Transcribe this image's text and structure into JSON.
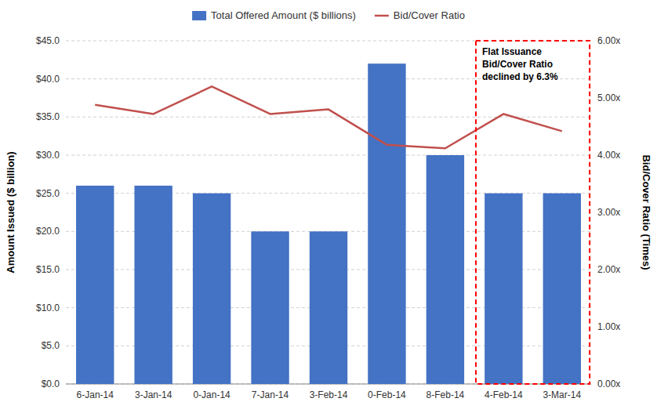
{
  "chart_data": {
    "type": "bar",
    "categories": [
      "6-Jan-14",
      "3-Jan-14",
      "0-Jan-14",
      "7-Jan-14",
      "3-Feb-14",
      "0-Feb-14",
      "8-Feb-14",
      "4-Feb-14",
      "3-Mar-14"
    ],
    "series": [
      {
        "name": "Total Offered Amount ($ billions)",
        "type": "bar",
        "color": "#4472C4",
        "values": [
          26,
          26,
          25,
          20,
          20,
          42,
          30,
          25,
          25
        ]
      },
      {
        "name": "Bid/Cover Ratio",
        "type": "line",
        "axis": "y2",
        "color": "#C0504D",
        "values": [
          4.88,
          4.72,
          5.2,
          4.72,
          4.8,
          4.18,
          4.12,
          4.72,
          4.42
        ]
      }
    ],
    "y_label": "Amount Issued ($ billion)",
    "y2_label": "Bid/Cover Ratio (Times)",
    "ylim": [
      0,
      45
    ],
    "yticks": [
      {
        "value": 0,
        "label": "$0.0"
      },
      {
        "value": 5,
        "label": "$5.0"
      },
      {
        "value": 10,
        "label": "$10.0"
      },
      {
        "value": 15,
        "label": "$15.0"
      },
      {
        "value": 20,
        "label": "$20.0"
      },
      {
        "value": 25,
        "label": "$25.0"
      },
      {
        "value": 30,
        "label": "$30.0"
      },
      {
        "value": 35,
        "label": "$35.0"
      },
      {
        "value": 40,
        "label": "$40.0"
      },
      {
        "value": 45,
        "label": "$45.0"
      }
    ],
    "y2lim": [
      0,
      6.0
    ],
    "y2ticks": [
      {
        "value": 0,
        "label": "0.00x"
      },
      {
        "value": 1,
        "label": "1.00x"
      },
      {
        "value": 2,
        "label": "2.00x"
      },
      {
        "value": 3,
        "label": "3.00x"
      },
      {
        "value": 4,
        "label": "4.00x"
      },
      {
        "value": 5,
        "label": "5.00x"
      },
      {
        "value": 6,
        "label": "6.00x"
      }
    ],
    "annotation": "Flat Issuance\nBid/Cover Ratio\ndeclined by 6.3%",
    "grid": true,
    "legend": "top"
  }
}
